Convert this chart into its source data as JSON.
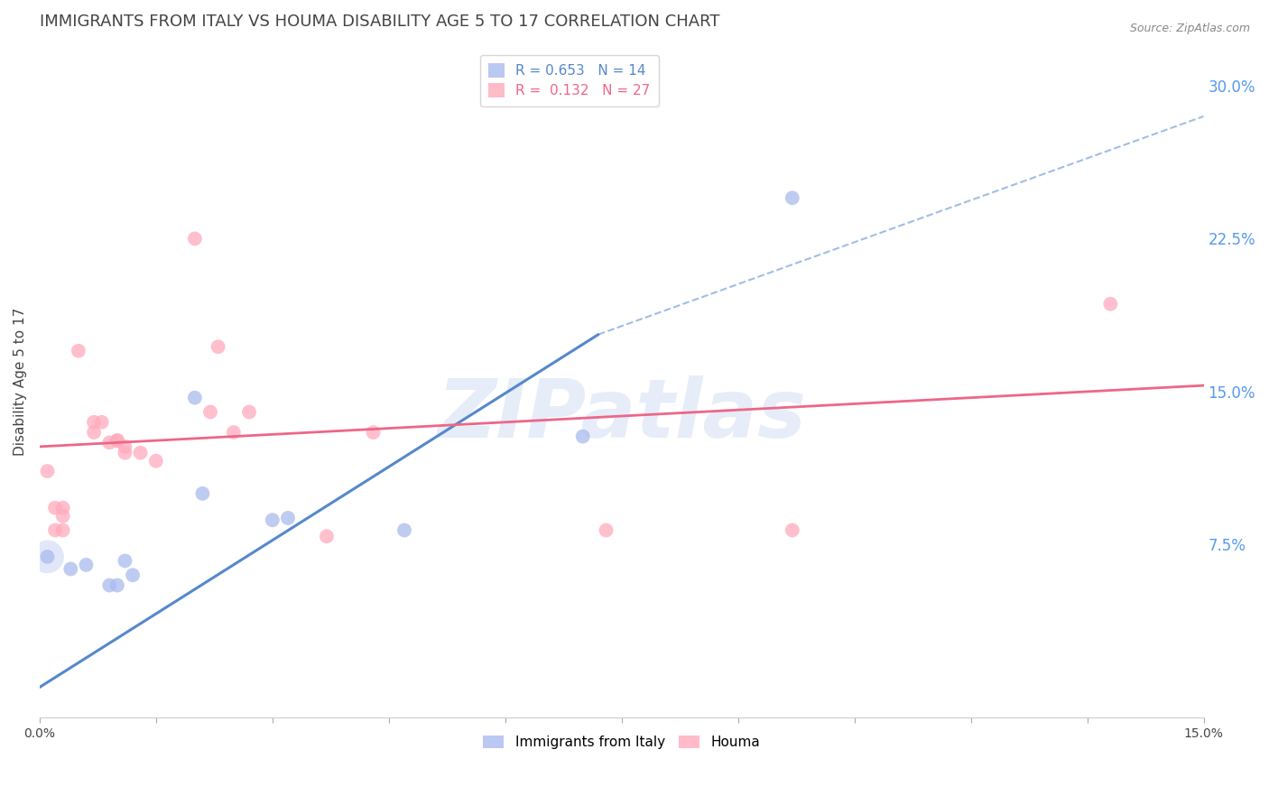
{
  "title": "IMMIGRANTS FROM ITALY VS HOUMA DISABILITY AGE 5 TO 17 CORRELATION CHART",
  "source": "Source: ZipAtlas.com",
  "ylabel": "Disability Age 5 to 17",
  "xlim": [
    0.0,
    0.15
  ],
  "ylim": [
    -0.01,
    0.32
  ],
  "xticks": [
    0.0,
    0.015,
    0.03,
    0.045,
    0.06,
    0.075,
    0.09,
    0.105,
    0.12,
    0.135,
    0.15
  ],
  "xticklabels_show": {
    "0.0": "0.0%",
    "0.15": "15.0%"
  },
  "yticks_right": [
    0.075,
    0.15,
    0.225,
    0.3
  ],
  "ytick_labels_right": [
    "7.5%",
    "15.0%",
    "22.5%",
    "30.0%"
  ],
  "legend_entry1": "R = 0.653   N = 14",
  "legend_entry2": "R =  0.132   N = 27",
  "legend_label1": "Immigrants from Italy",
  "legend_label2": "Houma",
  "blue_scatter": [
    [
      0.001,
      0.069
    ],
    [
      0.004,
      0.063
    ],
    [
      0.006,
      0.065
    ],
    [
      0.009,
      0.055
    ],
    [
      0.01,
      0.055
    ],
    [
      0.011,
      0.067
    ],
    [
      0.012,
      0.06
    ],
    [
      0.02,
      0.147
    ],
    [
      0.021,
      0.1
    ],
    [
      0.03,
      0.087
    ],
    [
      0.032,
      0.088
    ],
    [
      0.047,
      0.082
    ],
    [
      0.07,
      0.128
    ],
    [
      0.097,
      0.245
    ]
  ],
  "blue_scatter_large": [
    [
      0.001,
      0.069
    ]
  ],
  "pink_scatter": [
    [
      0.001,
      0.111
    ],
    [
      0.002,
      0.093
    ],
    [
      0.002,
      0.082
    ],
    [
      0.003,
      0.082
    ],
    [
      0.003,
      0.089
    ],
    [
      0.003,
      0.093
    ],
    [
      0.005,
      0.17
    ],
    [
      0.007,
      0.135
    ],
    [
      0.007,
      0.13
    ],
    [
      0.008,
      0.135
    ],
    [
      0.009,
      0.125
    ],
    [
      0.01,
      0.126
    ],
    [
      0.01,
      0.126
    ],
    [
      0.011,
      0.12
    ],
    [
      0.011,
      0.123
    ],
    [
      0.013,
      0.12
    ],
    [
      0.015,
      0.116
    ],
    [
      0.02,
      0.225
    ],
    [
      0.022,
      0.14
    ],
    [
      0.023,
      0.172
    ],
    [
      0.025,
      0.13
    ],
    [
      0.027,
      0.14
    ],
    [
      0.037,
      0.079
    ],
    [
      0.043,
      0.13
    ],
    [
      0.073,
      0.082
    ],
    [
      0.097,
      0.082
    ],
    [
      0.138,
      0.193
    ]
  ],
  "blue_line_solid": [
    [
      0.0,
      0.005
    ],
    [
      0.072,
      0.178
    ]
  ],
  "blue_line_dashed": [
    [
      0.072,
      0.178
    ],
    [
      0.15,
      0.285
    ]
  ],
  "pink_line": [
    [
      0.0,
      0.123
    ],
    [
      0.15,
      0.153
    ]
  ],
  "watermark": "ZIPatlas",
  "background_color": "#ffffff",
  "grid_color": "#cccccc",
  "blue_color": "#aabbee",
  "pink_color": "#ffaabb",
  "trend_blue": "#5588cc",
  "trend_pink": "#ee6688",
  "title_color": "#444444",
  "axis_label_color": "#444444",
  "right_tick_color": "#5599ee",
  "source_color": "#888888",
  "title_fontsize": 13,
  "legend_fontsize": 11,
  "axis_label_fontsize": 11,
  "watermark_color": "#c8d8f0",
  "watermark_fontsize": 65
}
